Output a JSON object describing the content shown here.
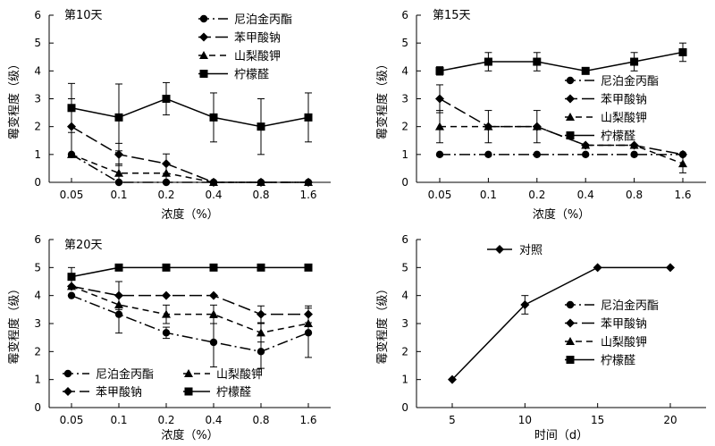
{
  "chart_data": [
    {
      "type": "line",
      "title": "第10天",
      "xlabel": "浓度（%）",
      "ylabel": "霉变程度（级）",
      "categories": [
        "0.05",
        "0.1",
        "0.2",
        "0.4",
        "0.8",
        "1.6"
      ],
      "ylim": [
        0,
        6
      ],
      "yticks": [
        "0",
        "1",
        "2",
        "3",
        "4",
        "5",
        "6"
      ],
      "legend_position": "top-right",
      "series": [
        {
          "name": "尼泊金丙酯",
          "marker": "circle",
          "dash": "dashdot",
          "values": [
            1,
            0,
            0,
            0,
            0,
            0
          ],
          "errors": [
            0,
            0,
            0,
            0,
            0,
            0
          ]
        },
        {
          "name": "苯甲酸钠",
          "marker": "diamond",
          "dash": "dash",
          "values": [
            2,
            1,
            0.67,
            0,
            0,
            0
          ],
          "errors": [
            1,
            0.4,
            0.35,
            0,
            0,
            0
          ]
        },
        {
          "name": "山梨酸钾",
          "marker": "triangle",
          "dash": "shortdash",
          "values": [
            1,
            0.33,
            0.33,
            0,
            0,
            0
          ],
          "errors": [
            0,
            0.33,
            0.33,
            0,
            0,
            0
          ]
        },
        {
          "name": "柠檬醛",
          "marker": "square",
          "dash": "solid",
          "values": [
            2.67,
            2.33,
            3,
            2.33,
            2,
            2.33
          ],
          "errors": [
            0.88,
            1.2,
            0.58,
            0.88,
            1,
            0.88
          ]
        }
      ]
    },
    {
      "type": "line",
      "title": "第15天",
      "xlabel": "浓度（%）",
      "ylabel": "霉变程度（级）",
      "categories": [
        "0.05",
        "0.1",
        "0.2",
        "0.4",
        "0.8",
        "1.6"
      ],
      "ylim": [
        0,
        6
      ],
      "yticks": [
        "0",
        "1",
        "2",
        "3",
        "4",
        "5",
        "6"
      ],
      "legend_position": "right",
      "series": [
        {
          "name": "尼泊金丙酯",
          "marker": "circle",
          "dash": "dashdot",
          "values": [
            1,
            1,
            1,
            1,
            1,
            1
          ],
          "errors": [
            0,
            0,
            0,
            0,
            0,
            0
          ]
        },
        {
          "name": "苯甲酸钠",
          "marker": "diamond",
          "dash": "dash",
          "values": [
            3,
            2,
            2,
            1.33,
            1.33,
            1
          ],
          "errors": [
            0.5,
            0.58,
            0.58,
            0,
            0,
            0
          ]
        },
        {
          "name": "山梨酸钾",
          "marker": "triangle",
          "dash": "shortdash",
          "values": [
            2,
            2,
            2,
            1.33,
            1.33,
            0.67
          ],
          "errors": [
            0.58,
            0,
            0,
            0,
            0,
            0.33
          ]
        },
        {
          "name": "柠檬醛",
          "marker": "square",
          "dash": "solid",
          "values": [
            4,
            4.33,
            4.33,
            4,
            4.33,
            4.67
          ],
          "errors": [
            0.15,
            0.33,
            0.33,
            0,
            0.33,
            0.33
          ]
        }
      ]
    },
    {
      "type": "line",
      "title": "第20天",
      "xlabel": "浓度（%）",
      "ylabel": "霉变程度（级）",
      "categories": [
        "0.05",
        "0.1",
        "0.2",
        "0.4",
        "0.8",
        "1.6"
      ],
      "ylim": [
        0,
        6
      ],
      "yticks": [
        "0",
        "1",
        "2",
        "3",
        "4",
        "5",
        "6"
      ],
      "legend_position": "bottom",
      "series": [
        {
          "name": "尼泊金丙酯",
          "marker": "circle",
          "dash": "dashdot",
          "values": [
            4,
            3.33,
            2.67,
            2.33,
            2,
            2.67
          ],
          "errors": [
            0,
            0.67,
            0.2,
            0.88,
            0.6,
            0.88
          ]
        },
        {
          "name": "苯甲酸钠",
          "marker": "diamond",
          "dash": "dash",
          "values": [
            4.33,
            4,
            4,
            4,
            3.33,
            3.33
          ],
          "errors": [
            0,
            0.5,
            0,
            0,
            0.3,
            0.3
          ]
        },
        {
          "name": "山梨酸钾",
          "marker": "triangle",
          "dash": "shortdash",
          "values": [
            4.33,
            3.67,
            3.33,
            3.33,
            2.67,
            3
          ],
          "errors": [
            0,
            0.33,
            0.33,
            0.33,
            0.33,
            0
          ]
        },
        {
          "name": "柠檬醛",
          "marker": "square",
          "dash": "solid",
          "values": [
            4.67,
            5,
            5,
            5,
            5,
            5
          ],
          "errors": [
            0.33,
            0,
            0,
            0,
            0,
            0
          ]
        }
      ]
    },
    {
      "type": "line",
      "title": "",
      "xlabel": "时间（d）",
      "ylabel": "霉变程度（级）",
      "categories": [
        "5",
        "10",
        "15",
        "20"
      ],
      "ylim": [
        0,
        6
      ],
      "yticks": [
        "0",
        "1",
        "2",
        "3",
        "4",
        "5",
        "6"
      ],
      "legend_position": "top",
      "legend_extra": [
        "尼泊金丙酯",
        "苯甲酸钠",
        "山梨酸钾",
        "柠檬醛"
      ],
      "series": [
        {
          "name": "对照",
          "marker": "diamond",
          "dash": "solid",
          "values": [
            1,
            3.67,
            5,
            5
          ],
          "errors": [
            0,
            0.33,
            0,
            0
          ]
        }
      ]
    }
  ]
}
